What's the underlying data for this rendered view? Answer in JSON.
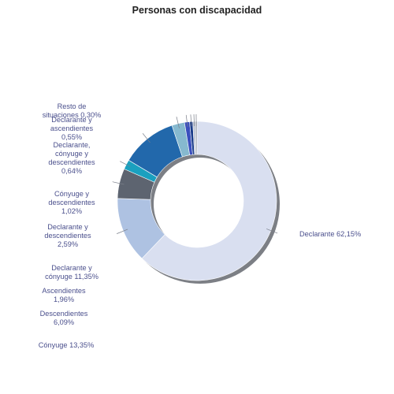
{
  "chart_data": {
    "type": "pie",
    "variant": "donut",
    "title": "Personas con discapacidad",
    "slices": [
      {
        "label_lines": [
          "Declarante 62,15%"
        ],
        "value": 62.15,
        "color": "#d9dff0"
      },
      {
        "label_lines": [
          "Cónyuge 13,35%"
        ],
        "value": 13.35,
        "color": "#aec2e2"
      },
      {
        "label_lines": [
          "Descendientes",
          "6,09%"
        ],
        "value": 6.09,
        "color": "#5d6470"
      },
      {
        "label_lines": [
          "Ascendientes",
          "1,96%"
        ],
        "value": 1.96,
        "color": "#1aa0bf"
      },
      {
        "label_lines": [
          "Declarante y",
          "cónyuge 11,35%"
        ],
        "value": 11.35,
        "color": "#2268ab"
      },
      {
        "label_lines": [
          "Declarante y",
          "descendientes",
          "2,59%"
        ],
        "value": 2.59,
        "color": "#86b9cf"
      },
      {
        "label_lines": [
          "Cónyuge y",
          "descendientes",
          "1,02%"
        ],
        "value": 1.02,
        "color": "#3a4fbd"
      },
      {
        "label_lines": [
          "Declarante,",
          "cónyuge y",
          "descendientes",
          "0,64%"
        ],
        "value": 0.64,
        "color": "#1a3c8a"
      },
      {
        "label_lines": [
          "Declarante y",
          "ascendientes",
          "0,55%"
        ],
        "value": 0.55,
        "color": "#c2c9d6"
      },
      {
        "label_lines": [
          "Resto de",
          "situaciones 0,30%"
        ],
        "value": 0.3,
        "color": "#8f97a8"
      }
    ]
  }
}
